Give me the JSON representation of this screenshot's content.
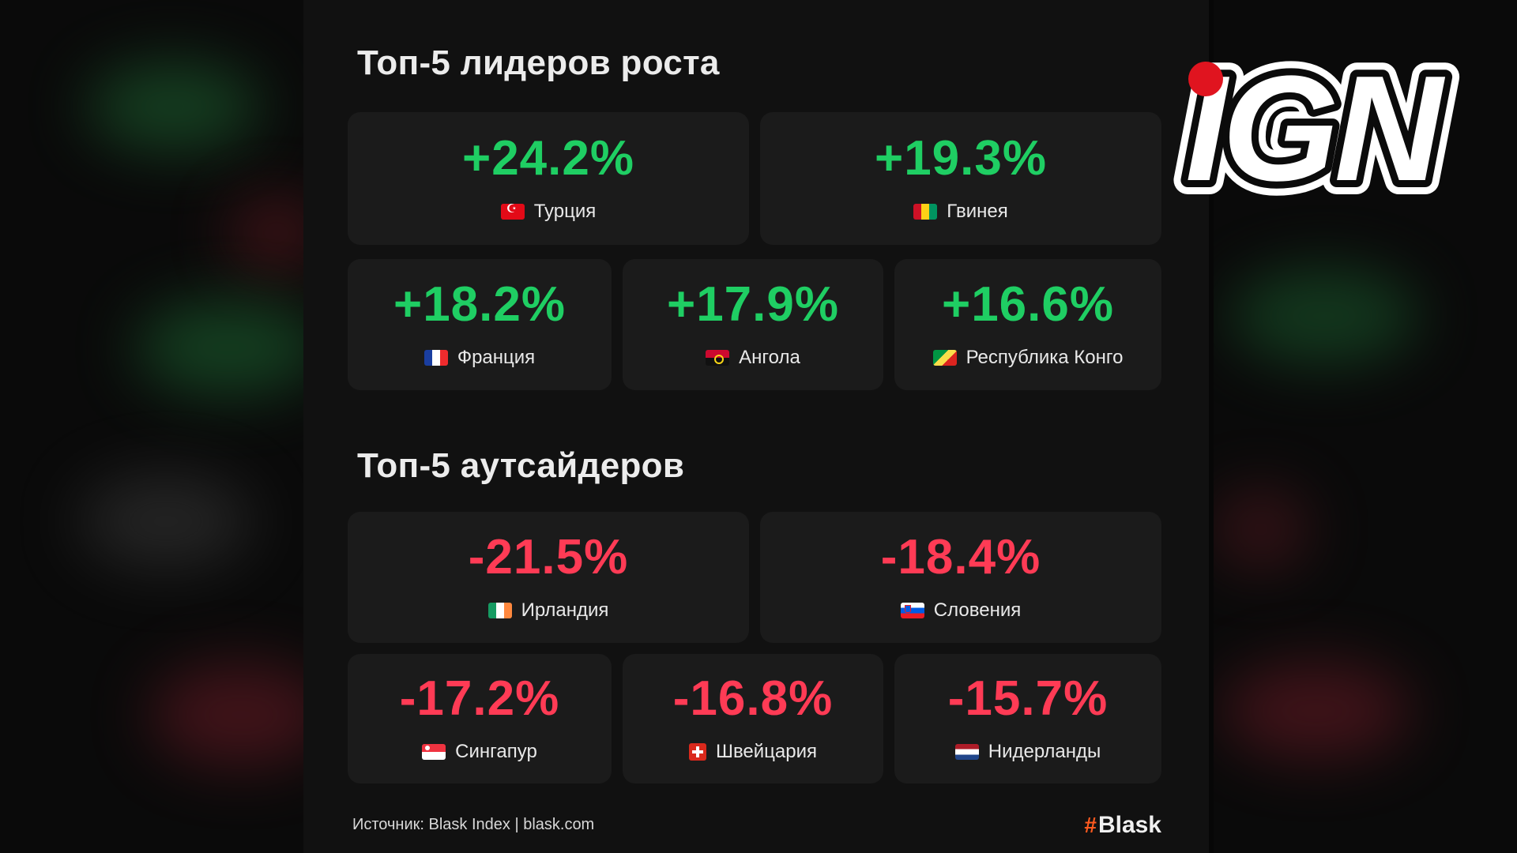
{
  "gainers": {
    "title": "Топ-5 лидеров роста",
    "items": [
      {
        "value": "+24.2%",
        "country": "Турция",
        "flag": "flag-turkey"
      },
      {
        "value": "+19.3%",
        "country": "Гвинея",
        "flag": "flag-guinea"
      },
      {
        "value": "+18.2%",
        "country": "Франция",
        "flag": "flag-france"
      },
      {
        "value": "+17.9%",
        "country": "Ангола",
        "flag": "flag-angola"
      },
      {
        "value": "+16.6%",
        "country": "Республика Конго",
        "flag": "flag-congo"
      }
    ]
  },
  "losers": {
    "title": "Топ-5 аутсайдеров",
    "items": [
      {
        "value": "-21.5%",
        "country": "Ирландия",
        "flag": "flag-ireland"
      },
      {
        "value": "-18.4%",
        "country": "Словения",
        "flag": "flag-slovenia"
      },
      {
        "value": "-17.2%",
        "country": "Сингапур",
        "flag": "flag-singapore"
      },
      {
        "value": "-16.8%",
        "country": "Швейцария",
        "flag": "flag-switzerland"
      },
      {
        "value": "-15.7%",
        "country": "Нидерланды",
        "flag": "flag-netherlands"
      }
    ]
  },
  "footer": {
    "source": "Источник: Blask Index | blask.com",
    "brand_hash": "#",
    "brand_name": "Blask"
  },
  "watermark": {
    "logo_text": "IGN"
  },
  "colors": {
    "positive": "#1fce63",
    "negative": "#ff3b55",
    "brand_accent": "#ff5a1f",
    "ign_red": "#e0141f"
  }
}
